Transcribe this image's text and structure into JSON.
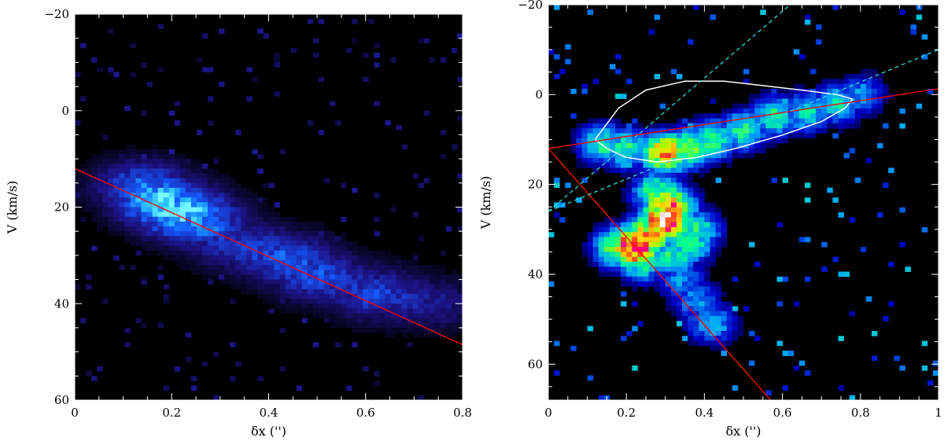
{
  "chart_data": [
    {
      "type": "heatmap",
      "panel": "left",
      "xlabel": "δx ('')",
      "ylabel": "V (km/s)",
      "xlim": [
        0,
        0.8
      ],
      "ylim": [
        -20,
        60
      ],
      "y_inverted": true,
      "x_ticks": [
        0,
        0.2,
        0.4,
        0.6,
        0.8
      ],
      "x_tick_labels": [
        "0",
        "0.2",
        "0.4",
        "0.6",
        "0.8"
      ],
      "y_ticks": [
        -20,
        0,
        20,
        40,
        60
      ],
      "y_tick_labels": [
        "−20",
        "0",
        "20",
        "40",
        "60"
      ],
      "colormap": "black-blue-cyan",
      "emission_ridge": [
        {
          "x": 0.14,
          "v": 16,
          "i": 0.7
        },
        {
          "x": 0.18,
          "v": 19,
          "i": 0.95
        },
        {
          "x": 0.22,
          "v": 21,
          "i": 1.0
        },
        {
          "x": 0.26,
          "v": 23,
          "i": 0.75
        },
        {
          "x": 0.32,
          "v": 27,
          "i": 0.5
        },
        {
          "x": 0.38,
          "v": 29,
          "i": 0.55
        },
        {
          "x": 0.44,
          "v": 31,
          "i": 0.65
        },
        {
          "x": 0.5,
          "v": 34,
          "i": 0.6
        },
        {
          "x": 0.56,
          "v": 36,
          "i": 0.5
        },
        {
          "x": 0.62,
          "v": 38,
          "i": 0.55
        },
        {
          "x": 0.68,
          "v": 39,
          "i": 0.45
        },
        {
          "x": 0.74,
          "v": 40,
          "i": 0.35
        }
      ],
      "lines": [
        {
          "color": "#ff0000",
          "x": [
            0,
            0.8
          ],
          "v": [
            12,
            48.5
          ]
        }
      ]
    },
    {
      "type": "heatmap",
      "panel": "right",
      "xlabel": "δx ('')",
      "ylabel": "V (km/s)",
      "xlim": [
        0,
        1
      ],
      "ylim": [
        -20,
        68
      ],
      "y_inverted": true,
      "x_ticks": [
        0,
        0.2,
        0.4,
        0.6,
        0.8,
        1
      ],
      "x_tick_labels": [
        "0",
        "0.2",
        "0.4",
        "0.6",
        "0.8",
        "1"
      ],
      "y_ticks": [
        -20,
        0,
        20,
        40,
        60
      ],
      "y_tick_labels": [
        "−20",
        "0",
        "20",
        "40",
        "60"
      ],
      "colormap": "rainbow",
      "emission_ridge": [
        {
          "x": 0.14,
          "v": 11,
          "i": 0.45
        },
        {
          "x": 0.2,
          "v": 12,
          "i": 0.45
        },
        {
          "x": 0.3,
          "v": 13,
          "i": 0.8
        },
        {
          "x": 0.36,
          "v": 12,
          "i": 0.55
        },
        {
          "x": 0.42,
          "v": 10,
          "i": 0.5
        },
        {
          "x": 0.5,
          "v": 8,
          "i": 0.45
        },
        {
          "x": 0.58,
          "v": 5,
          "i": 0.45
        },
        {
          "x": 0.66,
          "v": 4,
          "i": 0.4
        },
        {
          "x": 0.74,
          "v": 2,
          "i": 0.4
        },
        {
          "x": 0.8,
          "v": 0,
          "i": 0.3
        },
        {
          "x": 0.28,
          "v": 22,
          "i": 0.55
        },
        {
          "x": 0.31,
          "v": 25,
          "i": 0.85
        },
        {
          "x": 0.3,
          "v": 28,
          "i": 1.0
        },
        {
          "x": 0.26,
          "v": 31,
          "i": 0.75
        },
        {
          "x": 0.22,
          "v": 34,
          "i": 1.0
        },
        {
          "x": 0.18,
          "v": 34,
          "i": 0.6
        },
        {
          "x": 0.24,
          "v": 37,
          "i": 0.5
        },
        {
          "x": 0.32,
          "v": 36,
          "i": 0.45
        },
        {
          "x": 0.36,
          "v": 33,
          "i": 0.5
        },
        {
          "x": 0.38,
          "v": 30,
          "i": 0.45
        },
        {
          "x": 0.34,
          "v": 41,
          "i": 0.3
        },
        {
          "x": 0.38,
          "v": 46,
          "i": 0.3
        },
        {
          "x": 0.42,
          "v": 51,
          "i": 0.35
        }
      ],
      "lines": [
        {
          "color": "#ff0000",
          "x": [
            0,
            1
          ],
          "v": [
            12,
            -1.3
          ]
        },
        {
          "color": "#ff0000",
          "x": [
            0,
            0.57
          ],
          "v": [
            12,
            68
          ]
        },
        {
          "color": "#33dddd",
          "dashed": true,
          "x": [
            0,
            0.62
          ],
          "v": [
            26,
            -20
          ]
        },
        {
          "color": "#33dddd",
          "dashed": true,
          "x": [
            0,
            1
          ],
          "v": [
            26,
            -10
          ]
        }
      ],
      "contour": {
        "color": "#ffffff",
        "x": [
          0.12,
          0.18,
          0.25,
          0.35,
          0.45,
          0.55,
          0.65,
          0.74,
          0.78,
          0.76,
          0.7,
          0.6,
          0.48,
          0.38,
          0.28,
          0.2,
          0.15,
          0.12
        ],
        "v": [
          10,
          3,
          -1,
          -3,
          -3,
          -2,
          -1,
          0,
          1,
          3,
          6,
          9,
          12,
          14,
          15,
          14,
          12,
          10
        ]
      }
    }
  ]
}
